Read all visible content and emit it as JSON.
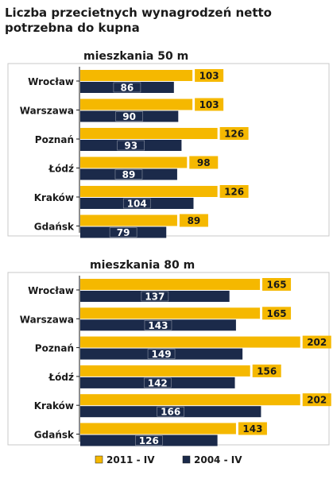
{
  "chart_data": {
    "type": "bar",
    "title": "Liczba przecietnych wynagrodzeń netto potrzebna do kupna",
    "title_lines": [
      "Liczba przecietnych wynagrodzeń netto",
      "potrzebna do kupna"
    ],
    "colors": {
      "2011 - IV": "#F5B800",
      "2004 - IV": "#1B2A4A"
    },
    "legend": [
      "2011 - IV",
      "2004 - IV"
    ],
    "legend_position": "bottom",
    "panels": [
      {
        "subtitle": "mieszkania 50 m",
        "categories": [
          "Wrocław",
          "Warszawa",
          "Poznań",
          "Łódź",
          "Kraków",
          "Gdańsk"
        ],
        "series": [
          {
            "name": "2011 - IV",
            "values": [
              103,
              103,
              126,
              98,
              126,
              89
            ]
          },
          {
            "name": "2004 - IV",
            "values": [
              86,
              90,
              93,
              89,
              104,
              79
            ]
          }
        ]
      },
      {
        "subtitle": "mieszkania 80 m",
        "categories": [
          "Wrocław",
          "Warszawa",
          "Poznań",
          "Łódź",
          "Kraków",
          "Gdańsk"
        ],
        "series": [
          {
            "name": "2011 - IV",
            "values": [
              165,
              165,
              202,
              156,
              202,
              143
            ]
          },
          {
            "name": "2004 - IV",
            "values": [
              137,
              143,
              149,
              142,
              166,
              126
            ]
          }
        ]
      }
    ]
  }
}
